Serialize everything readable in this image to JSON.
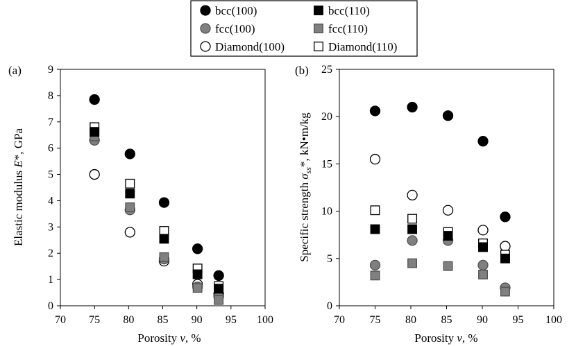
{
  "legend": {
    "entries": [
      {
        "label": "bcc(100)",
        "marker": "circle",
        "fill": "#000000",
        "stroke": "#000000"
      },
      {
        "label": "bcc(110)",
        "marker": "square",
        "fill": "#000000",
        "stroke": "#000000"
      },
      {
        "label": "fcc(100)",
        "marker": "circle",
        "fill": "#808080",
        "stroke": "#505050"
      },
      {
        "label": "fcc(110)",
        "marker": "square",
        "fill": "#808080",
        "stroke": "#505050"
      },
      {
        "label": "Diamond(100)",
        "marker": "circle",
        "fill": "#ffffff",
        "stroke": "#000000"
      },
      {
        "label": "Diamond(110)",
        "marker": "square",
        "fill": "#ffffff",
        "stroke": "#000000"
      }
    ]
  },
  "chart_data": [
    {
      "type": "scatter",
      "panel_label": "(a)",
      "xlabel_prefix": "Porosity ",
      "xlabel_var": "v",
      "xlabel_suffix": ", %",
      "ylabel_prefix": "Elastic modulus ",
      "ylabel_var": "E",
      "ylabel_suffix": "*, GPa",
      "xlim": [
        70,
        100
      ],
      "ylim": [
        0,
        9
      ],
      "xticks": [
        70,
        75,
        80,
        85,
        90,
        95,
        100
      ],
      "yticks": [
        0,
        1,
        2,
        3,
        4,
        5,
        6,
        7,
        8,
        9
      ],
      "grid": false,
      "series": [
        {
          "name": "bcc(100)",
          "x": [
            75,
            80.2,
            85.2,
            90.1,
            93.2
          ],
          "y": [
            7.85,
            5.78,
            3.93,
            2.17,
            1.15
          ]
        },
        {
          "name": "bcc(110)",
          "x": [
            75,
            80.2,
            85.2,
            90.1,
            93.2
          ],
          "y": [
            6.62,
            4.27,
            2.55,
            1.2,
            0.65
          ]
        },
        {
          "name": "fcc(100)",
          "x": [
            75,
            80.2,
            85.2,
            90.1,
            93.2
          ],
          "y": [
            6.3,
            3.65,
            1.78,
            0.72,
            0.35
          ]
        },
        {
          "name": "fcc(110)",
          "x": [
            75,
            80.2,
            85.2,
            90.1,
            93.2
          ],
          "y": [
            6.45,
            3.75,
            1.85,
            0.68,
            0.22
          ]
        },
        {
          "name": "Diamond(100)",
          "x": [
            75,
            80.2,
            85.2,
            90.1,
            93.2
          ],
          "y": [
            5.0,
            2.8,
            1.7,
            0.82,
            0.45
          ]
        },
        {
          "name": "Diamond(110)",
          "x": [
            75,
            80.2,
            85.2,
            90.1,
            93.2
          ],
          "y": [
            6.8,
            4.65,
            2.85,
            1.42,
            0.75
          ]
        }
      ]
    },
    {
      "type": "scatter",
      "panel_label": "(b)",
      "xlabel_prefix": "Porosity ",
      "xlabel_var": "v",
      "xlabel_suffix": ", %",
      "ylabel_prefix": "Specific strength ",
      "ylabel_var": "σ",
      "ylabel_sub": "ss",
      "ylabel_suffix": "*, kN•m/kg",
      "xlim": [
        70,
        100
      ],
      "ylim": [
        0,
        25
      ],
      "xticks": [
        70,
        75,
        80,
        85,
        90,
        95,
        100
      ],
      "yticks": [
        0,
        5,
        10,
        15,
        20,
        25
      ],
      "grid": false,
      "series": [
        {
          "name": "bcc(100)",
          "x": [
            75,
            80.2,
            85.2,
            90.1,
            93.2
          ],
          "y": [
            20.6,
            21.0,
            20.1,
            17.4,
            9.4
          ]
        },
        {
          "name": "bcc(110)",
          "x": [
            75,
            80.2,
            85.2,
            90.1,
            93.2
          ],
          "y": [
            8.1,
            8.1,
            7.4,
            6.2,
            5.0
          ]
        },
        {
          "name": "fcc(100)",
          "x": [
            75,
            80.2,
            85.2,
            90.1,
            93.2
          ],
          "y": [
            4.3,
            6.9,
            6.9,
            4.3,
            1.9
          ]
        },
        {
          "name": "fcc(110)",
          "x": [
            75,
            80.2,
            85.2,
            90.1,
            93.2
          ],
          "y": [
            3.2,
            4.5,
            4.2,
            3.3,
            1.5
          ]
        },
        {
          "name": "Diamond(100)",
          "x": [
            75,
            80.2,
            85.2,
            90.1,
            93.2
          ],
          "y": [
            15.5,
            11.7,
            10.1,
            8.0,
            6.3
          ]
        },
        {
          "name": "Diamond(110)",
          "x": [
            75,
            80.2,
            85.2,
            90.1,
            93.2
          ],
          "y": [
            10.1,
            9.2,
            7.8,
            6.6,
            5.4
          ]
        }
      ]
    }
  ]
}
